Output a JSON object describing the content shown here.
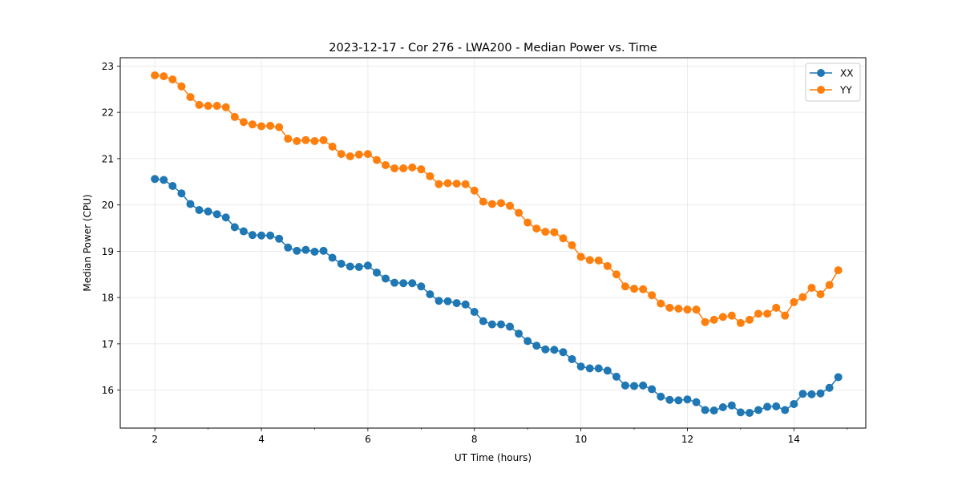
{
  "chart_data": {
    "type": "line",
    "title": "2023-12-17 - Cor 276 - LWA200 - Median Power vs. Time",
    "xlabel": "UT Time (hours)",
    "ylabel": "Median Power (CPU)",
    "xlim": [
      1.35,
      15.35
    ],
    "ylim": [
      15.18,
      23.18
    ],
    "xticks": [
      2,
      4,
      6,
      8,
      10,
      12,
      14
    ],
    "yticks": [
      16,
      17,
      18,
      19,
      20,
      21,
      22,
      23
    ],
    "x_tick_labels": [
      "2",
      "4",
      "6",
      "8",
      "10",
      "12",
      "14"
    ],
    "y_tick_labels": [
      "16",
      "17",
      "18",
      "19",
      "20",
      "21",
      "22",
      "23"
    ],
    "grid": true,
    "legend_position": "upper right",
    "x": [
      2.0,
      2.167,
      2.333,
      2.5,
      2.667,
      2.833,
      3.0,
      3.167,
      3.333,
      3.5,
      3.667,
      3.833,
      4.0,
      4.167,
      4.333,
      4.5,
      4.667,
      4.833,
      5.0,
      5.167,
      5.333,
      5.5,
      5.667,
      5.833,
      6.0,
      6.167,
      6.333,
      6.5,
      6.667,
      6.833,
      7.0,
      7.167,
      7.333,
      7.5,
      7.667,
      7.833,
      8.0,
      8.167,
      8.333,
      8.5,
      8.667,
      8.833,
      9.0,
      9.167,
      9.333,
      9.5,
      9.667,
      9.833,
      10.0,
      10.167,
      10.333,
      10.5,
      10.667,
      10.833,
      11.0,
      11.167,
      11.333,
      11.5,
      11.667,
      11.833,
      12.0,
      12.167,
      12.333,
      12.5,
      12.667,
      12.833,
      13.0,
      13.167,
      13.333,
      13.5,
      13.667,
      13.833,
      14.0,
      14.167,
      14.333,
      14.5,
      14.667,
      14.833
    ],
    "series": [
      {
        "name": "XX",
        "color": "#1f77b4",
        "values": [
          20.56,
          20.54,
          20.41,
          20.25,
          20.02,
          19.89,
          19.86,
          19.8,
          19.73,
          19.52,
          19.43,
          19.35,
          19.34,
          19.34,
          19.27,
          19.08,
          19.01,
          19.03,
          18.99,
          19.01,
          18.86,
          18.73,
          18.67,
          18.66,
          18.69,
          18.54,
          18.41,
          18.32,
          18.31,
          18.31,
          18.24,
          18.07,
          17.93,
          17.92,
          17.88,
          17.85,
          17.69,
          17.49,
          17.42,
          17.42,
          17.37,
          17.22,
          17.06,
          16.96,
          16.88,
          16.87,
          16.82,
          16.67,
          16.51,
          16.47,
          16.47,
          16.42,
          16.29,
          16.1,
          16.09,
          16.1,
          16.02,
          15.86,
          15.79,
          15.78,
          15.8,
          15.74,
          15.57,
          15.56,
          15.63,
          15.67,
          15.52,
          15.51,
          15.57,
          15.64,
          15.65,
          15.57,
          15.7,
          15.92,
          15.91,
          15.93,
          16.05,
          16.28
        ]
      },
      {
        "name": "YY",
        "color": "#ff7f0e",
        "values": [
          22.8,
          22.78,
          22.71,
          22.56,
          22.33,
          22.16,
          22.14,
          22.14,
          22.11,
          21.9,
          21.79,
          21.74,
          21.7,
          21.71,
          21.68,
          21.43,
          21.38,
          21.4,
          21.38,
          21.4,
          21.26,
          21.1,
          21.05,
          21.09,
          21.1,
          20.97,
          20.86,
          20.79,
          20.79,
          20.81,
          20.77,
          20.62,
          20.45,
          20.47,
          20.46,
          20.45,
          20.31,
          20.07,
          20.02,
          20.04,
          19.98,
          19.83,
          19.62,
          19.49,
          19.42,
          19.41,
          19.28,
          19.13,
          18.88,
          18.81,
          18.8,
          18.68,
          18.5,
          18.24,
          18.19,
          18.18,
          18.05,
          17.87,
          17.78,
          17.76,
          17.74,
          17.74,
          17.47,
          17.52,
          17.58,
          17.61,
          17.45,
          17.52,
          17.65,
          17.65,
          17.78,
          17.61,
          17.9,
          18.01,
          18.21,
          18.07,
          18.27,
          18.59
        ]
      }
    ]
  }
}
